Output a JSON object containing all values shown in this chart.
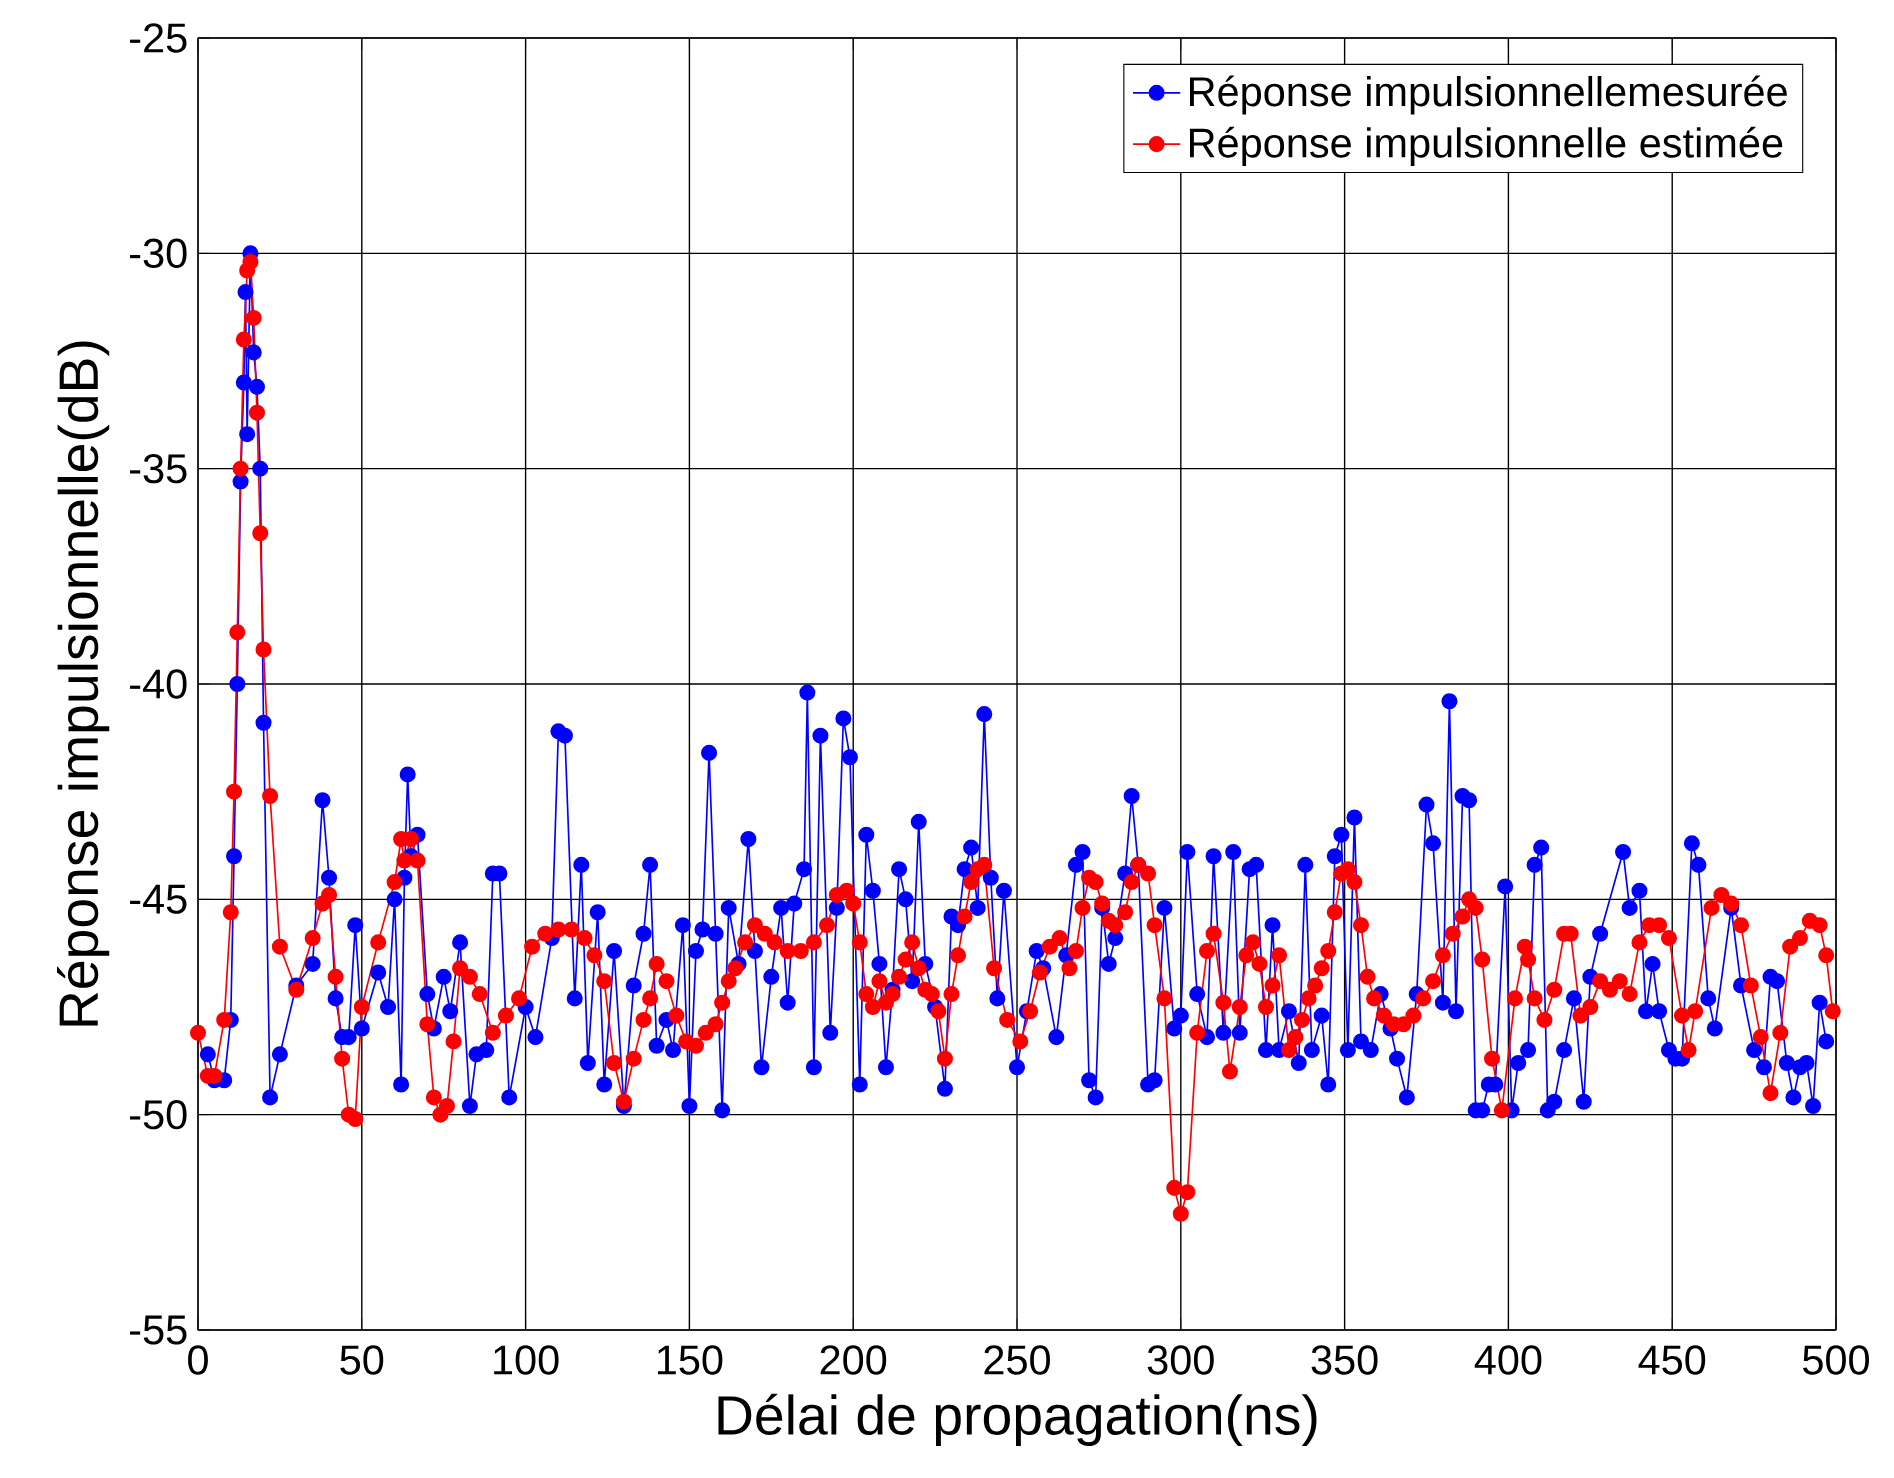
{
  "chart_data": {
    "type": "line",
    "xlabel": "Délai de propagation(ns)",
    "ylabel": "Réponse impulsionnelle(dB)",
    "xlim": [
      0,
      500
    ],
    "ylim": [
      -55,
      -25
    ],
    "xticks": [
      0,
      50,
      100,
      150,
      200,
      250,
      300,
      350,
      400,
      450,
      500
    ],
    "yticks": [
      -55,
      -50,
      -45,
      -40,
      -35,
      -30,
      -25
    ],
    "grid": true,
    "legend": "top right",
    "marker": "circle",
    "line_style": "solid",
    "series": [
      {
        "name": "Réponse impulsionnellemesurée",
        "color": "#0000ff",
        "x": [
          3,
          5,
          8,
          10,
          11,
          12,
          13,
          14,
          14.5,
          15,
          16,
          17,
          18,
          19,
          20,
          22,
          25,
          30,
          35,
          38,
          40,
          42,
          44,
          46,
          48,
          50,
          55,
          58,
          60,
          62,
          63,
          64,
          65,
          67,
          70,
          72,
          75,
          77,
          80,
          83,
          85,
          88,
          90,
          92,
          95,
          100,
          103,
          108,
          110,
          112,
          115,
          117,
          119,
          122,
          124,
          127,
          130,
          133,
          136,
          138,
          140,
          143,
          145,
          148,
          150,
          152,
          154,
          156,
          158,
          160,
          162,
          165,
          168,
          170,
          172,
          175,
          178,
          180,
          182,
          185,
          186,
          188,
          190,
          193,
          195,
          197,
          199,
          202,
          204,
          206,
          208,
          210,
          212,
          214,
          216,
          218,
          220,
          222,
          225,
          228,
          230,
          232,
          234,
          236,
          238,
          240,
          242,
          244,
          246,
          250,
          253,
          256,
          258,
          262,
          265,
          268,
          270,
          272,
          274,
          276,
          278,
          280,
          283,
          285,
          287,
          290,
          292,
          295,
          298,
          300,
          302,
          305,
          308,
          310,
          313,
          316,
          318,
          321,
          323,
          326,
          328,
          330,
          333,
          336,
          338,
          340,
          343,
          345,
          347,
          349,
          351,
          353,
          355,
          358,
          361,
          364,
          366,
          369,
          372,
          375,
          377,
          380,
          382,
          384,
          386,
          388,
          390,
          392,
          394,
          396,
          399,
          401,
          403,
          406,
          408,
          410,
          412,
          414,
          417,
          420,
          423,
          425,
          428,
          435,
          437,
          440,
          442,
          444,
          446,
          449,
          451,
          453,
          456,
          458,
          461,
          463,
          468,
          471,
          475,
          478,
          480,
          482,
          485,
          487,
          489,
          491,
          493,
          495,
          497
        ],
        "values": [
          -48.6,
          -49.2,
          -49.2,
          -47.8,
          -44,
          -40,
          -35.3,
          -33,
          -30.9,
          -34.2,
          -30.0,
          -32.3,
          -33.1,
          -35,
          -40.9,
          -49.6,
          -48.6,
          -47,
          -46.5,
          -42.7,
          -44.5,
          -47.3,
          -48.2,
          -48.2,
          -45.6,
          -48,
          -46.7,
          -47.5,
          -45,
          -49.3,
          -44.5,
          -42.1,
          -44,
          -43.5,
          -47.2,
          -48,
          -46.8,
          -47.6,
          -46,
          -49.8,
          -48.6,
          -48.5,
          -44.4,
          -44.4,
          -49.6,
          -47.5,
          -48.2,
          -45.9,
          -41.1,
          -41.2,
          -47.3,
          -44.2,
          -48.8,
          -45.3,
          -49.3,
          -46.2,
          -49.8,
          -47,
          -45.8,
          -44.2,
          -48.4,
          -47.8,
          -48.5,
          -45.6,
          -49.8,
          -46.2,
          -45.7,
          -41.6,
          -45.8,
          -49.9,
          -45.2,
          -46.5,
          -43.6,
          -46.2,
          -48.9,
          -46.8,
          -45.2,
          -47.4,
          -45.1,
          -44.3,
          -40.2,
          -48.9,
          -41.2,
          -48.1,
          -45.2,
          -40.8,
          -41.7,
          -49.3,
          -43.5,
          -44.8,
          -46.5,
          -48.9,
          -47.1,
          -44.3,
          -45,
          -46.9,
          -43.2,
          -46.5,
          -47.5,
          -49.4,
          -45.4,
          -45.6,
          -44.3,
          -43.8,
          -45.2,
          -40.7,
          -44.5,
          -47.3,
          -44.8,
          -48.9,
          -47.6,
          -46.2,
          -46.6,
          -48.2,
          -46.3,
          -44.2,
          -43.9,
          -49.2,
          -49.6,
          -45.2,
          -46.5,
          -45.9,
          -44.4,
          -42.6,
          -44.2,
          -49.3,
          -49.2,
          -45.2,
          -48,
          -47.7,
          -43.9,
          -47.2,
          -48.2,
          -44,
          -48.1,
          -43.9,
          -48.1,
          -44.3,
          -44.2,
          -48.5,
          -45.6,
          -48.5,
          -47.6,
          -48.8,
          -44.2,
          -48.5,
          -47.7,
          -49.3,
          -44,
          -43.5,
          -48.5,
          -43.1,
          -48.3,
          -48.5,
          -47.2,
          -48,
          -48.7,
          -49.6,
          -47.2,
          -42.8,
          -43.7,
          -47.4,
          -40.4,
          -47.6,
          -42.6,
          -42.7,
          -49.9,
          -49.9,
          -49.3,
          -49.3,
          -44.7,
          -49.9,
          -48.8,
          -48.5,
          -44.2,
          -43.8,
          -49.9,
          -49.7,
          -48.5,
          -47.3,
          -49.7,
          -46.8,
          -45.8,
          -43.9,
          -45.2,
          -44.8,
          -47.6,
          -46.5,
          -47.6,
          -48.5,
          -48.7,
          -48.7,
          -43.7,
          -44.2,
          -47.3,
          -48,
          -45.2,
          -47,
          -48.5,
          -48.9,
          -46.8,
          -46.9,
          -48.8,
          -49.6,
          -48.9,
          -48.8,
          -49.8,
          -47.4,
          -48.3
        ]
      },
      {
        "name": "Réponse impulsionnelle estimée",
        "color": "#ff0000",
        "x": [
          0,
          3,
          5,
          8,
          10,
          11,
          12,
          13,
          14,
          15,
          16,
          17,
          18,
          19,
          20,
          22,
          25,
          30,
          35,
          38,
          40,
          42,
          44,
          46,
          48,
          50,
          55,
          60,
          62,
          63,
          65,
          67,
          70,
          72,
          74,
          76,
          78,
          80,
          83,
          86,
          90,
          94,
          98,
          102,
          106,
          110,
          114,
          118,
          121,
          124,
          127,
          130,
          133,
          136,
          138,
          140,
          143,
          146,
          149,
          152,
          155,
          158,
          160,
          162,
          164,
          167,
          170,
          173,
          176,
          180,
          184,
          188,
          192,
          195,
          198,
          200,
          202,
          204,
          206,
          208,
          210,
          212,
          214,
          216,
          218,
          220,
          222,
          224,
          226,
          228,
          230,
          232,
          234,
          236,
          238,
          240,
          243,
          247,
          251,
          254,
          257,
          260,
          263,
          266,
          268,
          270,
          272,
          274,
          276,
          278,
          280,
          283,
          285,
          287,
          290,
          292,
          295,
          298,
          300,
          302,
          305,
          308,
          310,
          313,
          315,
          318,
          320,
          322,
          324,
          326,
          328,
          330,
          333,
          335,
          337,
          339,
          341,
          343,
          345,
          347,
          349,
          351,
          353,
          355,
          357,
          359,
          362,
          365,
          368,
          371,
          374,
          377,
          380,
          383,
          386,
          388,
          390,
          392,
          395,
          398,
          402,
          405,
          406,
          408,
          411,
          414,
          417,
          419,
          422,
          425,
          428,
          431,
          434,
          437,
          440,
          443,
          446,
          449,
          453,
          455,
          457,
          462,
          465,
          468,
          471,
          474,
          477,
          480,
          483,
          486,
          489,
          492,
          495,
          497,
          499
        ],
        "values": [
          -48.1,
          -49.1,
          -49.1,
          -47.8,
          -45.3,
          -42.5,
          -38.8,
          -35,
          -32,
          -30.4,
          -30.2,
          -31.5,
          -33.7,
          -36.5,
          -39.2,
          -42.6,
          -46.1,
          -47.1,
          -45.9,
          -45.1,
          -44.9,
          -46.8,
          -48.7,
          -50,
          -50.1,
          -47.5,
          -46,
          -44.6,
          -43.6,
          -44.1,
          -43.6,
          -44.1,
          -47.9,
          -49.6,
          -50,
          -49.8,
          -48.3,
          -46.6,
          -46.8,
          -47.2,
          -48.1,
          -47.7,
          -47.3,
          -46.1,
          -45.8,
          -45.7,
          -45.7,
          -45.9,
          -46.3,
          -46.9,
          -48.8,
          -49.7,
          -48.7,
          -47.8,
          -47.3,
          -46.5,
          -46.9,
          -47.7,
          -48.3,
          -48.4,
          -48.1,
          -47.9,
          -47.4,
          -46.9,
          -46.6,
          -46,
          -45.6,
          -45.8,
          -46,
          -46.2,
          -46.2,
          -46,
          -45.6,
          -44.9,
          -44.8,
          -45.1,
          -46,
          -47.2,
          -47.5,
          -46.9,
          -47.4,
          -47.2,
          -46.8,
          -46.4,
          -46,
          -46.6,
          -47.1,
          -47.2,
          -47.6,
          -48.7,
          -47.2,
          -46.3,
          -45.4,
          -44.6,
          -44.3,
          -44.2,
          -46.6,
          -47.8,
          -48.3,
          -47.6,
          -46.7,
          -46.1,
          -45.9,
          -46.6,
          -46.2,
          -45.2,
          -44.5,
          -44.6,
          -45.1,
          -45.5,
          -45.6,
          -45.3,
          -44.6,
          -44.2,
          -44.4,
          -45.6,
          -47.3,
          -51.7,
          -52.3,
          -51.8,
          -48.1,
          -46.2,
          -45.8,
          -47.4,
          -49,
          -47.5,
          -46.3,
          -46,
          -46.5,
          -47.5,
          -47,
          -46.3,
          -48.5,
          -48.2,
          -47.8,
          -47.3,
          -47,
          -46.6,
          -46.2,
          -45.3,
          -44.4,
          -44.3,
          -44.6,
          -45.6,
          -46.8,
          -47.3,
          -47.7,
          -47.9,
          -47.9,
          -47.7,
          -47.3,
          -46.9,
          -46.3,
          -45.8,
          -45.4,
          -45,
          -45.2,
          -46.4,
          -48.7,
          -49.9,
          -47.3,
          -46.1,
          -46.4,
          -47.3,
          -47.8,
          -47.1,
          -45.8,
          -45.8,
          -47.7,
          -47.5,
          -46.9,
          -47.1,
          -46.9,
          -47.2,
          -46,
          -45.6,
          -45.6,
          -45.9,
          -47.7,
          -48.5,
          -47.6,
          -45.2,
          -44.9,
          -45.1,
          -45.6,
          -47,
          -48.2,
          -49.5,
          -48.1,
          -46.1,
          -45.9,
          -45.5,
          -45.6,
          -46.3,
          -47.6
        ]
      }
    ]
  }
}
